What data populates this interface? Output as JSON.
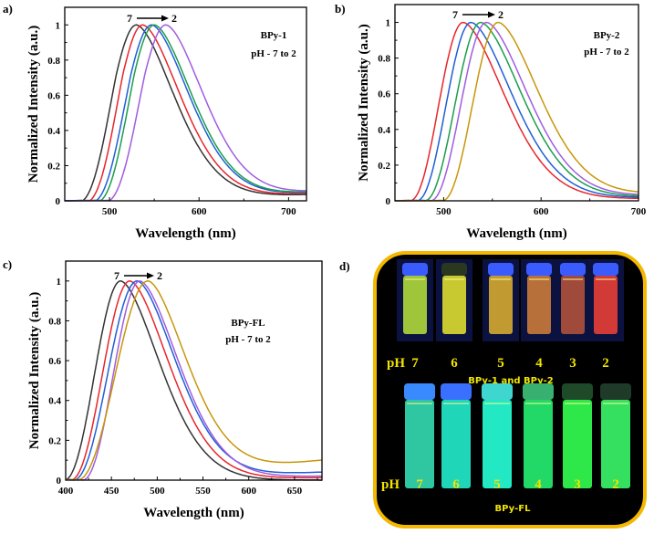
{
  "chart_data": [
    {
      "panel": "a)",
      "type": "line",
      "title": "",
      "xlabel": "Wavelength (nm)",
      "ylabel": "Normalized Intensity (a.u.)",
      "xlim": [
        450,
        720
      ],
      "ylim": [
        0,
        1.1
      ],
      "xticks": [
        500,
        600,
        700
      ],
      "yticks": [
        0,
        0.2,
        0.4,
        0.6,
        0.8,
        1
      ],
      "ytick_labels": [
        "0",
        "0.2",
        "0.4",
        "0.6",
        "0.8",
        "1"
      ],
      "minor_xticks": [
        550,
        650
      ],
      "annotations": [
        "BPy-1",
        "pH - 7 to 2"
      ],
      "arrow": {
        "from": "7",
        "to": "2"
      },
      "grid": false,
      "series": [
        {
          "name": "pH 7",
          "color": "#333333",
          "peak": 530,
          "onset": 470,
          "shoulder": 0.62,
          "tail_red": 0.035
        },
        {
          "name": "pH 6",
          "color": "#e8262a",
          "peak": 537,
          "onset": 478,
          "shoulder": 0.6,
          "tail_red": 0.04
        },
        {
          "name": "pH 5",
          "color": "#1f5fd6",
          "peak": 547,
          "onset": 485,
          "shoulder": 0.6,
          "tail_red": 0.045
        },
        {
          "name": "pH 4",
          "color": "#1a9e4a",
          "peak": 550,
          "onset": 490,
          "shoulder": 0.6,
          "tail_red": 0.048
        },
        {
          "name": "pH 3",
          "color": "#a05ce0",
          "peak": 563,
          "onset": 500,
          "shoulder": 0.65,
          "tail_red": 0.05
        }
      ]
    },
    {
      "panel": "b)",
      "type": "line",
      "title": "",
      "xlabel": "Wavelength (nm)",
      "ylabel": "Normalized Intensity (a.u.)",
      "xlim": [
        450,
        700
      ],
      "ylim": [
        0,
        1.1
      ],
      "xticks": [
        500,
        600,
        700
      ],
      "yticks": [
        0,
        0.2,
        0.4,
        0.6,
        0.8,
        1
      ],
      "ytick_labels": [
        "0",
        "0.2",
        "0.4",
        "0.6",
        "0.8",
        "1"
      ],
      "minor_xticks": [
        550,
        650
      ],
      "annotations": [
        "BPy-2",
        "pH - 7 to 2"
      ],
      "arrow": {
        "from": "7",
        "to": "2"
      },
      "grid": false,
      "series": [
        {
          "name": "pH 7",
          "color": "#e8262a",
          "peak": 520,
          "onset": 465,
          "tail_red": 0.012
        },
        {
          "name": "pH 6",
          "color": "#1f5fd6",
          "peak": 528,
          "onset": 472,
          "tail_red": 0.018
        },
        {
          "name": "pH 5",
          "color": "#1a9e4a",
          "peak": 538,
          "onset": 480,
          "tail_red": 0.022
        },
        {
          "name": "pH 4",
          "color": "#a05ce0",
          "peak": 544,
          "onset": 486,
          "tail_red": 0.028
        },
        {
          "name": "pH 3",
          "color": "#c8960a",
          "peak": 556,
          "onset": 498,
          "tail_red": 0.036
        }
      ]
    },
    {
      "panel": "c)",
      "type": "line",
      "title": "",
      "xlabel": "Wavelength (nm)",
      "ylabel": "Normalized Intensity (a.u.)",
      "xlim": [
        400,
        680
      ],
      "ylim": [
        0,
        1.1
      ],
      "xticks": [
        400,
        450,
        500,
        550,
        600,
        650
      ],
      "yticks": [
        0,
        0.2,
        0.4,
        0.6,
        0.8,
        1
      ],
      "ytick_labels": [
        "0",
        "0.2",
        "0.4",
        "0.6",
        "0.8",
        "1"
      ],
      "annotations": [
        "BPy-FL",
        "pH - 7 to 2"
      ],
      "arrow": {
        "from": "7",
        "to": "2"
      },
      "grid": false,
      "series": [
        {
          "name": "pH 7",
          "color": "#333333",
          "peak": 460,
          "onset": 398,
          "tail_red": 0.0
        },
        {
          "name": "pH 6",
          "color": "#e8262a",
          "peak": 470,
          "onset": 405,
          "tail_red": 0.012
        },
        {
          "name": "pH 5",
          "color": "#1f5fd6",
          "peak": 478,
          "onset": 408,
          "tail_red": 0.04
        },
        {
          "name": "pH 4",
          "color": "#a05ce0",
          "peak": 481,
          "onset": 418,
          "tail_red": 0.02
        },
        {
          "name": "pH 3",
          "color": "#c8960a",
          "peak": 490,
          "onset": 412,
          "tail_red": 0.1
        }
      ]
    }
  ],
  "photo_panel": {
    "label": "d)",
    "border_color": "#f5b800",
    "ph_label": "pH",
    "rows": [
      {
        "caption": "BPy-1 and BPy-2",
        "ph_values": [
          "7",
          "6",
          "5",
          "4",
          "3",
          "2"
        ],
        "vial_colors": [
          "#9fc53a",
          "#c8c830",
          "#c29a32",
          "#b8703a",
          "#a04a3c",
          "#d23a38"
        ],
        "cap_colors": [
          "#3a5cff",
          "#2a3820",
          "#3a5cff",
          "#3a5cff",
          "#3a5cff",
          "#3a5cff"
        ]
      },
      {
        "caption": "BPy-FL",
        "ph_values": [
          "7",
          "6",
          "5",
          "4",
          "3",
          "2"
        ],
        "vial_colors": [
          "#2fc6a2",
          "#20d6b8",
          "#22e8c4",
          "#22d866",
          "#2ee84a",
          "#35e060"
        ],
        "cap_colors": [
          "#3a8aff",
          "#3a70ff",
          "#40d6d0",
          "#38b070",
          "#1f4a2a",
          "#1f3a28"
        ]
      }
    ]
  }
}
